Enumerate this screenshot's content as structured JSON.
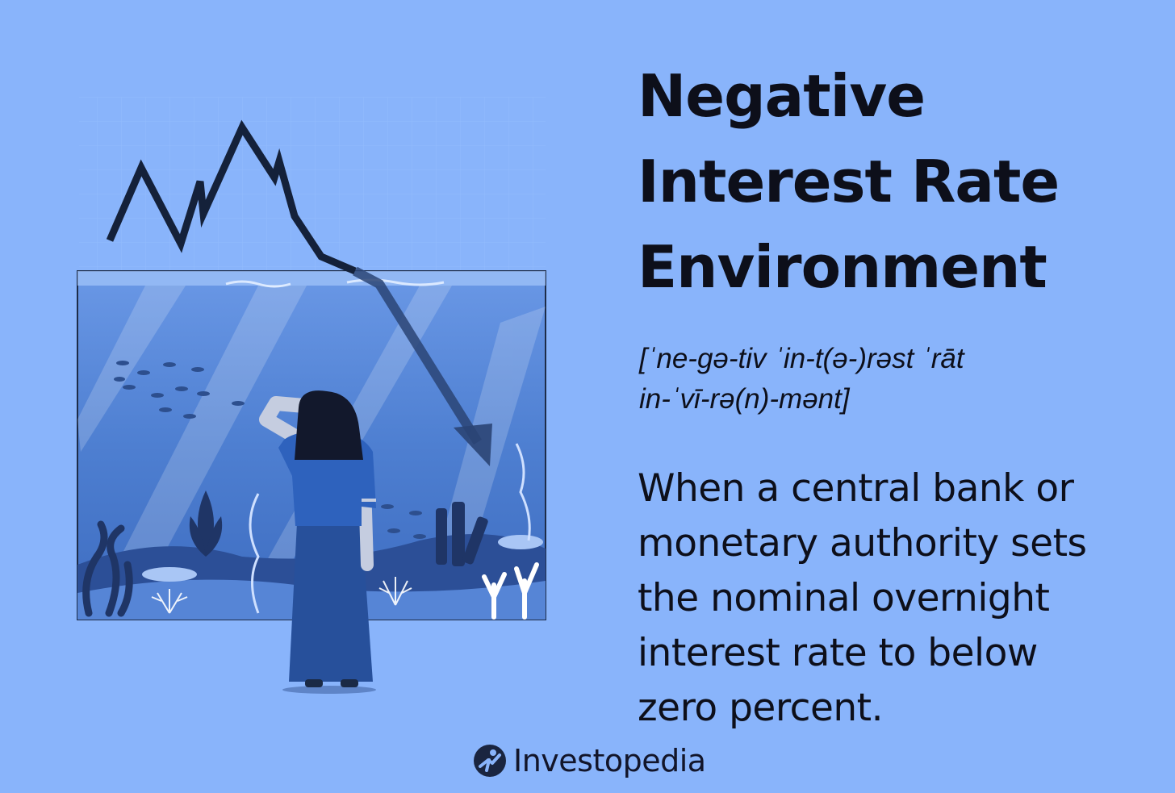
{
  "title_lines": [
    "Negative",
    "Interest Rate",
    "Environment"
  ],
  "pronunciation_lines": [
    "[ˈne-gə-tiv ˈin-t(ə-)rəst ˈrāt",
    "in-ˈvī-rə(n)-mənt]"
  ],
  "definition_lines": [
    "When a central bank or",
    "monetary authority sets",
    "the nominal overnight",
    "interest rate to below",
    "zero percent."
  ],
  "brand": {
    "name": "Investopedia",
    "logo_icon": "investopedia-logo-icon"
  },
  "colors": {
    "background": "#89b4fb",
    "text": "#0d0f1a",
    "arrow": "#1b2a45",
    "water": "#4f7fd0"
  },
  "illustration": {
    "description_icon": "woman-looking-at-aquarium-with-falling-chart-icon"
  }
}
